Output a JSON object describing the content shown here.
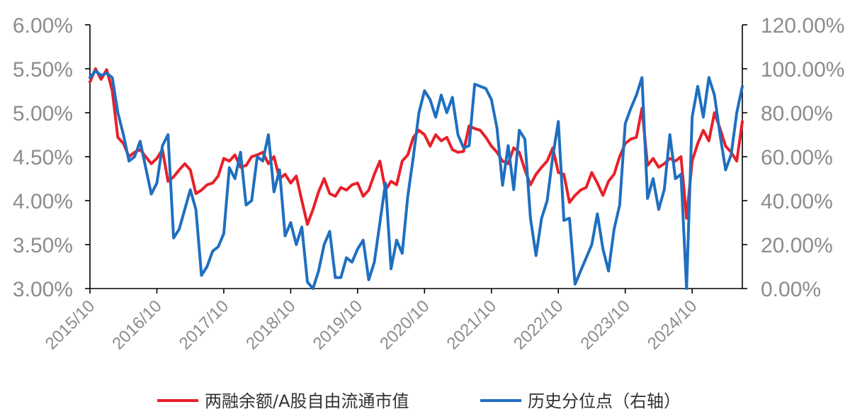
{
  "chart_data": {
    "type": "line",
    "x_ticks": [
      "2015/10",
      "2016/10",
      "2017/10",
      "2018/10",
      "2019/10",
      "2020/10",
      "2021/10",
      "2022/10",
      "2023/10",
      "2024/10"
    ],
    "y_left_ticks": [
      "3.00%",
      "3.50%",
      "4.00%",
      "4.50%",
      "5.00%",
      "5.50%",
      "6.00%"
    ],
    "y_right_ticks": [
      "0.00%",
      "20.00%",
      "40.00%",
      "60.00%",
      "80.00%",
      "100.00%",
      "120.00%"
    ],
    "y_left_range": [
      3.0,
      6.0
    ],
    "y_right_range": [
      0.0,
      120.0
    ],
    "x_range": [
      "2015/10",
      "2025/07"
    ],
    "grid": false,
    "legend_position": "bottom",
    "series": [
      {
        "name": "两融余额/A股自由流通市值",
        "axis": "left",
        "color": "#e8202a",
        "x": [
          "2015/10",
          "2015/11",
          "2015/12",
          "2016/01",
          "2016/02",
          "2016/03",
          "2016/04",
          "2016/05",
          "2016/06",
          "2016/07",
          "2016/08",
          "2016/09",
          "2016/10",
          "2016/11",
          "2016/12",
          "2017/01",
          "2017/02",
          "2017/03",
          "2017/04",
          "2017/05",
          "2017/06",
          "2017/07",
          "2017/08",
          "2017/09",
          "2017/10",
          "2017/11",
          "2017/12",
          "2018/01",
          "2018/02",
          "2018/03",
          "2018/04",
          "2018/05",
          "2018/06",
          "2018/07",
          "2018/08",
          "2018/09",
          "2018/10",
          "2018/11",
          "2018/12",
          "2019/01",
          "2019/02",
          "2019/03",
          "2019/04",
          "2019/05",
          "2019/06",
          "2019/07",
          "2019/08",
          "2019/09",
          "2019/10",
          "2019/11",
          "2019/12",
          "2020/01",
          "2020/02",
          "2020/03",
          "2020/04",
          "2020/05",
          "2020/06",
          "2020/07",
          "2020/08",
          "2020/09",
          "2020/10",
          "2020/11",
          "2020/12",
          "2021/01",
          "2021/02",
          "2021/03",
          "2021/04",
          "2021/05",
          "2021/06",
          "2021/07",
          "2021/08",
          "2021/09",
          "2021/10",
          "2021/11",
          "2021/12",
          "2022/01",
          "2022/02",
          "2022/03",
          "2022/04",
          "2022/05",
          "2022/06",
          "2022/07",
          "2022/08",
          "2022/09",
          "2022/10",
          "2022/11",
          "2022/12",
          "2023/01",
          "2023/02",
          "2023/03",
          "2023/04",
          "2023/05",
          "2023/06",
          "2023/07",
          "2023/08",
          "2023/09",
          "2023/10",
          "2023/11",
          "2023/12",
          "2024/01",
          "2024/02",
          "2024/03",
          "2024/04",
          "2024/05",
          "2024/06",
          "2024/07",
          "2024/08",
          "2024/09",
          "2024/10",
          "2024/11",
          "2024/12",
          "2025/01",
          "2025/02",
          "2025/03",
          "2025/04",
          "2025/05",
          "2025/06",
          "2025/07"
        ],
        "values": [
          5.35,
          5.5,
          5.38,
          5.49,
          5.25,
          4.72,
          4.65,
          4.5,
          4.55,
          4.58,
          4.5,
          4.42,
          4.48,
          4.58,
          4.22,
          4.27,
          4.35,
          4.42,
          4.35,
          4.08,
          4.12,
          4.18,
          4.2,
          4.28,
          4.48,
          4.45,
          4.52,
          4.38,
          4.4,
          4.5,
          4.52,
          4.55,
          4.42,
          4.5,
          4.25,
          4.3,
          4.2,
          4.28,
          4.0,
          3.73,
          3.9,
          4.1,
          4.25,
          4.08,
          4.05,
          4.15,
          4.12,
          4.18,
          4.2,
          4.05,
          4.12,
          4.3,
          4.45,
          4.12,
          4.22,
          4.18,
          4.45,
          4.52,
          4.72,
          4.8,
          4.75,
          4.62,
          4.75,
          4.68,
          4.72,
          4.58,
          4.55,
          4.56,
          4.85,
          4.82,
          4.8,
          4.72,
          4.62,
          4.55,
          4.45,
          4.42,
          4.6,
          4.55,
          4.35,
          4.18,
          4.3,
          4.38,
          4.45,
          4.6,
          4.32,
          4.3,
          3.98,
          4.06,
          4.12,
          4.15,
          4.32,
          4.2,
          4.06,
          4.22,
          4.3,
          4.5,
          4.65,
          4.7,
          4.72,
          5.05,
          4.4,
          4.48,
          4.38,
          4.42,
          4.48,
          4.45,
          4.5,
          3.8,
          4.45,
          4.65,
          4.8,
          4.68,
          5.0,
          4.82,
          4.62,
          4.55,
          4.45,
          4.9
        ]
      },
      {
        "name": "历史分位点（右轴）",
        "axis": "right",
        "color": "#1f6fc0",
        "x": [
          "2015/10",
          "2015/11",
          "2015/12",
          "2016/01",
          "2016/02",
          "2016/03",
          "2016/04",
          "2016/05",
          "2016/06",
          "2016/07",
          "2016/08",
          "2016/09",
          "2016/10",
          "2016/11",
          "2016/12",
          "2017/01",
          "2017/02",
          "2017/03",
          "2017/04",
          "2017/05",
          "2017/06",
          "2017/07",
          "2017/08",
          "2017/09",
          "2017/10",
          "2017/11",
          "2017/12",
          "2018/01",
          "2018/02",
          "2018/03",
          "2018/04",
          "2018/05",
          "2018/06",
          "2018/07",
          "2018/08",
          "2018/09",
          "2018/10",
          "2018/11",
          "2018/12",
          "2019/01",
          "2019/02",
          "2019/03",
          "2019/04",
          "2019/05",
          "2019/06",
          "2019/07",
          "2019/08",
          "2019/09",
          "2019/10",
          "2019/11",
          "2019/12",
          "2020/01",
          "2020/02",
          "2020/03",
          "2020/04",
          "2020/05",
          "2020/06",
          "2020/07",
          "2020/08",
          "2020/09",
          "2020/10",
          "2020/11",
          "2020/12",
          "2021/01",
          "2021/02",
          "2021/03",
          "2021/04",
          "2021/05",
          "2021/06",
          "2021/07",
          "2021/08",
          "2021/09",
          "2021/10",
          "2021/11",
          "2021/12",
          "2022/01",
          "2022/02",
          "2022/03",
          "2022/04",
          "2022/05",
          "2022/06",
          "2022/07",
          "2022/08",
          "2022/09",
          "2022/10",
          "2022/11",
          "2022/12",
          "2023/01",
          "2023/02",
          "2023/03",
          "2023/04",
          "2023/05",
          "2023/06",
          "2023/07",
          "2023/08",
          "2023/09",
          "2023/10",
          "2023/11",
          "2023/12",
          "2024/01",
          "2024/02",
          "2024/03",
          "2024/04",
          "2024/05",
          "2024/06",
          "2024/07",
          "2024/08",
          "2024/09",
          "2024/10",
          "2024/11",
          "2024/12",
          "2025/01",
          "2025/02",
          "2025/03",
          "2025/04",
          "2025/05",
          "2025/06",
          "2025/07"
        ],
        "values": [
          96,
          99,
          97,
          98,
          96,
          80,
          70,
          58,
          60,
          67,
          55,
          43,
          48,
          65,
          70,
          23,
          27,
          36,
          45,
          36,
          6,
          10,
          17,
          19,
          25,
          55,
          50,
          62,
          38,
          40,
          60,
          58,
          70,
          44,
          54,
          24,
          30,
          20,
          28,
          3,
          0,
          8,
          20,
          26,
          5,
          5,
          14,
          12,
          18,
          22,
          4,
          12,
          30,
          48,
          9,
          22,
          16,
          42,
          60,
          80,
          90,
          86,
          78,
          88,
          80,
          87,
          70,
          64,
          65,
          93,
          92,
          91,
          86,
          73,
          47,
          65,
          45,
          72,
          68,
          32,
          15,
          32,
          40,
          60,
          76,
          31,
          32,
          2,
          8,
          14,
          20,
          34,
          18,
          8,
          27,
          38,
          75,
          82,
          88,
          96,
          41,
          50,
          36,
          45,
          70,
          50,
          52,
          0,
          78,
          92,
          78,
          96,
          88,
          70,
          54,
          61,
          80,
          92
        ]
      }
    ]
  },
  "legend": {
    "items": [
      {
        "label": "两融余额/A股自由流通市值",
        "color": "#e8202a"
      },
      {
        "label": "历史分位点（右轴）",
        "color": "#1f6fc0"
      }
    ]
  }
}
